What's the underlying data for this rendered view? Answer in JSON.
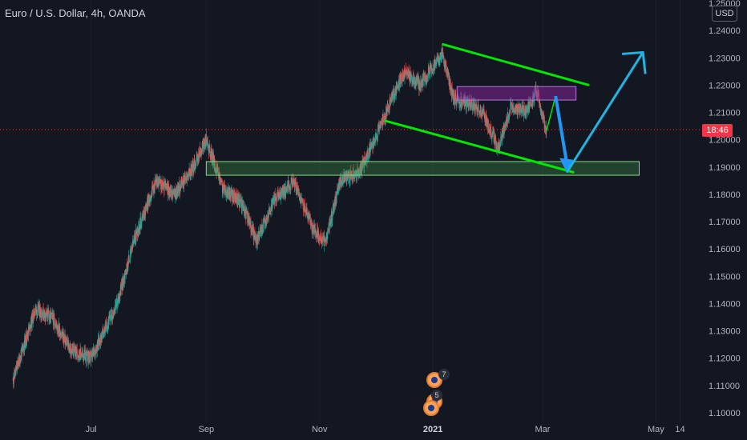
{
  "header": {
    "symbol_title": "Euro / U.S. Dollar, 4h, OANDA",
    "currency": "USD",
    "last_price_countdown": "18:46"
  },
  "colors": {
    "background": "#131722",
    "up_candle": "#26a69a",
    "down_candle": "#ef5350",
    "trendline": "#00e600",
    "arrow_down": "#2196f3",
    "arrow_up": "#1fb5e0",
    "support_zone": "#4caf50",
    "resistance_zone": "#9c27b0",
    "price_line": "#f23645"
  },
  "events": {
    "badge_top": "7",
    "badge_bottom": "5"
  },
  "chart_data": {
    "type": "candlestick",
    "symbol": "EURUSD",
    "interval": "4h",
    "y_axis": {
      "ticks": [
        "1.25000",
        "1.24000",
        "1.23000",
        "1.22000",
        "1.21000",
        "1.20000",
        "1.19000",
        "1.18000",
        "1.17000",
        "1.16000",
        "1.15000",
        "1.14000",
        "1.13000",
        "1.12000",
        "1.11000",
        "1.10000"
      ],
      "ylim": [
        1.1,
        1.25
      ]
    },
    "x_axis": {
      "ticks": [
        {
          "label": "Jul",
          "bold": false
        },
        {
          "label": "Sep",
          "bold": false
        },
        {
          "label": "Nov",
          "bold": false
        },
        {
          "label": "2021",
          "bold": true
        },
        {
          "label": "Mar",
          "bold": false
        },
        {
          "label": "May",
          "bold": false
        },
        {
          "label": "14",
          "bold": false
        }
      ]
    },
    "last_price": 1.2025,
    "approx_close_path": [
      [
        "2020-05-20",
        1.112
      ],
      [
        "2020-06-01",
        1.138
      ],
      [
        "2020-06-10",
        1.135
      ],
      [
        "2020-06-20",
        1.123
      ],
      [
        "2020-07-01",
        1.12
      ],
      [
        "2020-07-15",
        1.14
      ],
      [
        "2020-07-25",
        1.165
      ],
      [
        "2020-08-05",
        1.185
      ],
      [
        "2020-08-15",
        1.18
      ],
      [
        "2020-08-25",
        1.19
      ],
      [
        "2020-09-01",
        1.2
      ],
      [
        "2020-09-10",
        1.182
      ],
      [
        "2020-09-20",
        1.177
      ],
      [
        "2020-09-28",
        1.163
      ],
      [
        "2020-10-08",
        1.178
      ],
      [
        "2020-10-18",
        1.185
      ],
      [
        "2020-10-28",
        1.168
      ],
      [
        "2020-11-04",
        1.162
      ],
      [
        "2020-11-12",
        1.185
      ],
      [
        "2020-11-22",
        1.188
      ],
      [
        "2020-12-01",
        1.2
      ],
      [
        "2020-12-08",
        1.212
      ],
      [
        "2020-12-17",
        1.225
      ],
      [
        "2020-12-25",
        1.22
      ],
      [
        "2021-01-06",
        1.232
      ],
      [
        "2021-01-12",
        1.215
      ],
      [
        "2021-01-20",
        1.213
      ],
      [
        "2021-01-28",
        1.21
      ],
      [
        "2021-02-05",
        1.197
      ],
      [
        "2021-02-12",
        1.212
      ],
      [
        "2021-02-20",
        1.21
      ],
      [
        "2021-02-26",
        1.218
      ],
      [
        "2021-03-03",
        1.203
      ]
    ],
    "drawings": {
      "upper_trendline": [
        [
          "2021-01-06",
          1.235
        ],
        [
          "2021-03-26",
          1.22
        ]
      ],
      "lower_trendline": [
        [
          "2020-12-06",
          1.207
        ],
        [
          "2021-03-18",
          1.188
        ]
      ],
      "support_zone": {
        "from": "2020-09-01",
        "to": "2021-04-22",
        "low": 1.187,
        "high": 1.192
      },
      "resistance_zone": {
        "from": "2021-01-14",
        "to": "2021-03-19",
        "low": 1.216,
        "high": 1.218
      },
      "projection_path": [
        [
          "2021-03-03",
          1.203
        ],
        [
          "2021-03-08",
          1.216
        ],
        [
          "2021-03-14",
          1.188
        ],
        [
          "2021-04-24",
          1.232
        ]
      ]
    }
  }
}
